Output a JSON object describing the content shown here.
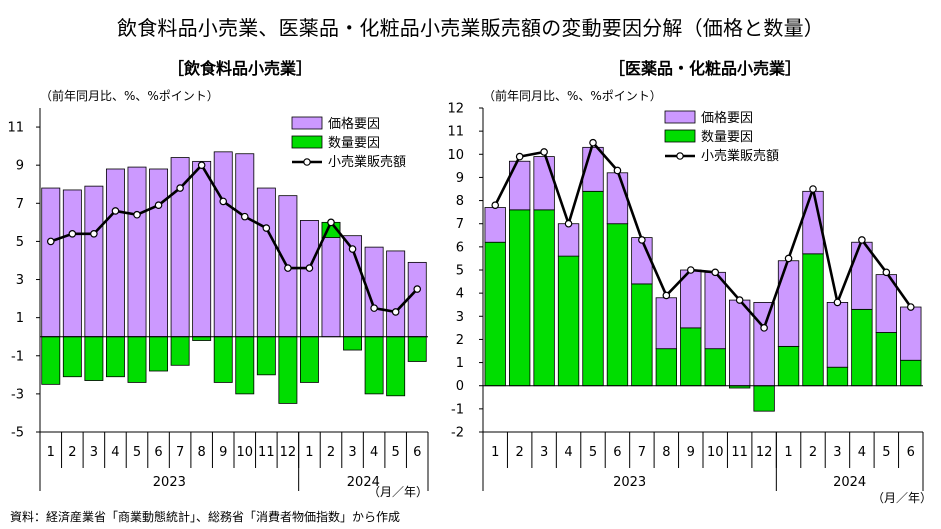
{
  "title": "飲食料品小売業、医薬品・化粧品小売業販売額の変動要因分解（価格と数量）",
  "source": "資料：経済産業省「商業動態統計」、総務省「消費者物価指数」から作成",
  "colors": {
    "price": "#CC99FF",
    "quantity": "#00DD00",
    "line": "#000000",
    "marker_fill": "#ffffff"
  },
  "chart_data": [
    {
      "type": "bar",
      "title": "［飲食料品小売業］",
      "ylabel": "（前年同月比、%、%ポイント）",
      "xunit": "（月／年）",
      "ylim": [
        -5,
        12
      ],
      "yticks": [
        -5,
        -3,
        -1,
        1,
        3,
        5,
        7,
        9,
        11
      ],
      "categories": [
        "1",
        "2",
        "3",
        "4",
        "5",
        "6",
        "7",
        "8",
        "9",
        "10",
        "11",
        "12",
        "1",
        "2",
        "3",
        "4",
        "5",
        "6"
      ],
      "years": [
        {
          "label": "2023",
          "start": 0,
          "end": 11
        },
        {
          "label": "2024",
          "start": 12,
          "end": 17
        }
      ],
      "legend_position": "top-right",
      "series": [
        {
          "name": "価格要因",
          "kind": "bar",
          "values": [
            7.8,
            7.7,
            7.9,
            8.8,
            8.9,
            8.8,
            9.4,
            9.2,
            9.7,
            9.6,
            7.8,
            7.4,
            6.1,
            5.2,
            5.3,
            4.7,
            4.5,
            3.9
          ]
        },
        {
          "name": "数量要因",
          "kind": "bar",
          "values": [
            -2.5,
            -2.1,
            -2.3,
            -2.1,
            -2.4,
            -1.8,
            -1.5,
            -0.2,
            -2.4,
            -3.0,
            -2.0,
            -3.5,
            -2.4,
            0.8,
            -0.7,
            -3.0,
            -3.1,
            -1.3
          ]
        },
        {
          "name": "小売業販売額",
          "kind": "line",
          "values": [
            5.0,
            5.4,
            5.4,
            6.6,
            6.4,
            6.9,
            7.8,
            9.0,
            7.1,
            6.3,
            5.7,
            3.6,
            3.6,
            6.0,
            4.6,
            1.5,
            1.3,
            2.5
          ]
        }
      ]
    },
    {
      "type": "bar",
      "title": "［医薬品・化粧品小売業］",
      "ylabel": "（前年同月比、%、%ポイント）",
      "xunit": "（月／年）",
      "ylim": [
        -2,
        12
      ],
      "yticks": [
        -2,
        -1,
        0,
        1,
        2,
        3,
        4,
        5,
        6,
        7,
        8,
        9,
        10,
        11,
        12
      ],
      "categories": [
        "1",
        "2",
        "3",
        "4",
        "5",
        "6",
        "7",
        "8",
        "9",
        "10",
        "11",
        "12",
        "1",
        "2",
        "3",
        "4",
        "5",
        "6"
      ],
      "years": [
        {
          "label": "2023",
          "start": 0,
          "end": 11
        },
        {
          "label": "2024",
          "start": 12,
          "end": 17
        }
      ],
      "legend_position": "top-left",
      "series": [
        {
          "name": "価格要因",
          "kind": "bar",
          "values": [
            1.5,
            2.1,
            2.3,
            1.4,
            1.9,
            2.2,
            2.0,
            2.2,
            2.5,
            3.3,
            3.7,
            3.6,
            3.7,
            2.7,
            2.8,
            2.9,
            2.5,
            2.3
          ]
        },
        {
          "name": "数量要因",
          "kind": "bar",
          "values": [
            6.2,
            7.6,
            7.6,
            5.6,
            8.4,
            7.0,
            4.4,
            1.6,
            2.5,
            1.6,
            -0.1,
            -1.1,
            1.7,
            5.7,
            0.8,
            3.3,
            2.3,
            1.1
          ]
        },
        {
          "name": "小売業販売額",
          "kind": "line",
          "values": [
            7.8,
            9.9,
            10.1,
            7.0,
            10.5,
            9.3,
            6.3,
            3.9,
            5.0,
            4.9,
            3.7,
            2.5,
            5.5,
            8.5,
            3.6,
            6.3,
            4.9,
            3.4
          ]
        }
      ]
    }
  ]
}
